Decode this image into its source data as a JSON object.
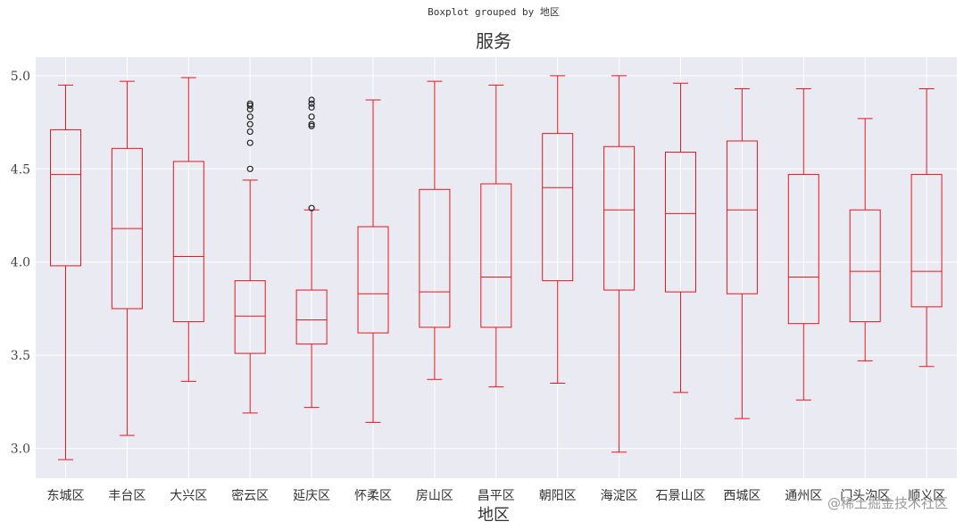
{
  "suptitle": "Boxplot grouped by 地区",
  "watermark": "@稀土掘金技术社区",
  "colors": {
    "box": "#e8161d",
    "plot_bg": "#eaeaf2",
    "grid": "#ffffff",
    "outlier": "#222222"
  },
  "chart_data": {
    "type": "boxplot",
    "title": "服务",
    "xlabel": "地区",
    "ylabel": "",
    "ylim": [
      2.84,
      5.1
    ],
    "yticks": [
      "3.0",
      "3.5",
      "4.0",
      "4.5",
      "5.0"
    ],
    "grid": true,
    "categories": [
      "东城区",
      "丰台区",
      "大兴区",
      "密云区",
      "延庆区",
      "怀柔区",
      "房山区",
      "昌平区",
      "朝阳区",
      "海淀区",
      "石景山区",
      "西城区",
      "通州区",
      "门头沟区",
      "顺义区"
    ],
    "boxes": [
      {
        "whisker_low": 2.94,
        "q1": 3.98,
        "median": 4.47,
        "q3": 4.71,
        "whisker_high": 4.95,
        "outliers": []
      },
      {
        "whisker_low": 3.07,
        "q1": 3.75,
        "median": 4.18,
        "q3": 4.61,
        "whisker_high": 4.97,
        "outliers": []
      },
      {
        "whisker_low": 3.36,
        "q1": 3.68,
        "median": 4.03,
        "q3": 4.54,
        "whisker_high": 4.99,
        "outliers": []
      },
      {
        "whisker_low": 3.19,
        "q1": 3.51,
        "median": 3.71,
        "q3": 3.9,
        "whisker_high": 4.44,
        "outliers": [
          4.5,
          4.64,
          4.7,
          4.74,
          4.78,
          4.82,
          4.84,
          4.85
        ]
      },
      {
        "whisker_low": 3.22,
        "q1": 3.56,
        "median": 3.69,
        "q3": 3.85,
        "whisker_high": 4.28,
        "outliers": [
          4.29,
          4.73,
          4.74,
          4.78,
          4.83,
          4.85,
          4.87
        ]
      },
      {
        "whisker_low": 3.14,
        "q1": 3.62,
        "median": 3.83,
        "q3": 4.19,
        "whisker_high": 4.87,
        "outliers": []
      },
      {
        "whisker_low": 3.37,
        "q1": 3.65,
        "median": 3.84,
        "q3": 4.39,
        "whisker_high": 4.97,
        "outliers": []
      },
      {
        "whisker_low": 3.33,
        "q1": 3.65,
        "median": 3.92,
        "q3": 4.42,
        "whisker_high": 4.95,
        "outliers": []
      },
      {
        "whisker_low": 3.35,
        "q1": 3.9,
        "median": 4.4,
        "q3": 4.69,
        "whisker_high": 5.0,
        "outliers": []
      },
      {
        "whisker_low": 2.98,
        "q1": 3.85,
        "median": 4.28,
        "q3": 4.62,
        "whisker_high": 5.0,
        "outliers": []
      },
      {
        "whisker_low": 3.3,
        "q1": 3.84,
        "median": 4.26,
        "q3": 4.59,
        "whisker_high": 4.96,
        "outliers": []
      },
      {
        "whisker_low": 3.16,
        "q1": 3.83,
        "median": 4.28,
        "q3": 4.65,
        "whisker_high": 4.93,
        "outliers": []
      },
      {
        "whisker_low": 3.26,
        "q1": 3.67,
        "median": 3.92,
        "q3": 4.47,
        "whisker_high": 4.93,
        "outliers": []
      },
      {
        "whisker_low": 3.47,
        "q1": 3.68,
        "median": 3.95,
        "q3": 4.28,
        "whisker_high": 4.77,
        "outliers": []
      },
      {
        "whisker_low": 3.44,
        "q1": 3.76,
        "median": 3.95,
        "q3": 4.47,
        "whisker_high": 4.93,
        "outliers": []
      }
    ]
  }
}
